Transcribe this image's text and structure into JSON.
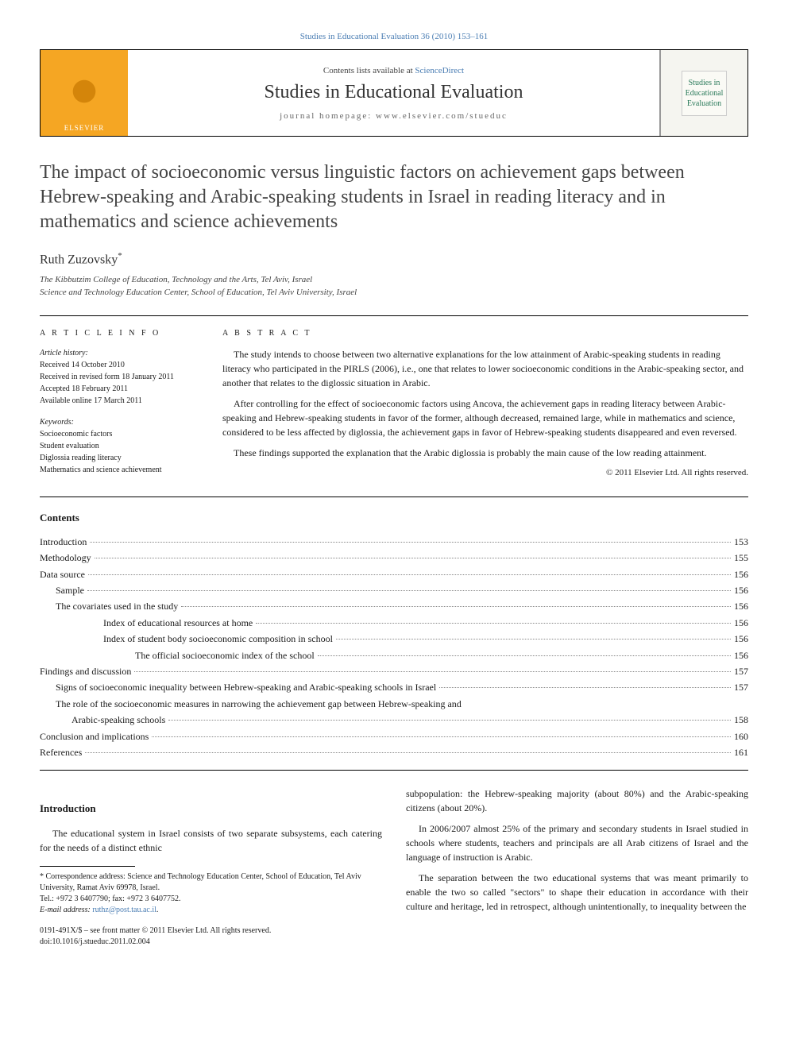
{
  "header_ref": "Studies in Educational Evaluation 36 (2010) 153–161",
  "banner": {
    "contents_prefix": "Contents lists available at ",
    "contents_link": "ScienceDirect",
    "journal_title": "Studies in Educational Evaluation",
    "homepage": "journal homepage: www.elsevier.com/stueduc",
    "publisher": "ELSEVIER",
    "thumb_line1": "Studies in",
    "thumb_line2": "Educational",
    "thumb_line3": "Evaluation"
  },
  "title": "The impact of socioeconomic versus linguistic factors on achievement gaps between Hebrew-speaking and Arabic-speaking students in Israel in reading literacy and in mathematics and science achievements",
  "author": "Ruth Zuzovsky",
  "author_marker": "*",
  "affiliations": [
    "The Kibbutzim College of Education, Technology and the Arts, Tel Aviv, Israel",
    "Science and Technology Education Center, School of Education, Tel Aviv University, Israel"
  ],
  "info_heading": "A R T I C L E   I N F O",
  "abstract_heading": "A B S T R A C T",
  "history": {
    "title": "Article history:",
    "lines": [
      "Received 14 October 2010",
      "Received in revised form 18 January 2011",
      "Accepted 18 February 2011",
      "Available online 17 March 2011"
    ]
  },
  "keywords": {
    "title": "Keywords:",
    "items": [
      "Socioeconomic factors",
      "Student evaluation",
      "Diglossia reading literacy",
      "Mathematics and science achievement"
    ]
  },
  "abstract": {
    "p1": "The study intends to choose between two alternative explanations for the low attainment of Arabic-speaking students in reading literacy who participated in the PIRLS (2006), i.e., one that relates to lower socioeconomic conditions in the Arabic-speaking sector, and another that relates to the diglossic situation in Arabic.",
    "p2": "After controlling for the effect of socioeconomic factors using Ancova, the achievement gaps in reading literacy between Arabic-speaking and Hebrew-speaking students in favor of the former, although decreased, remained large, while in mathematics and science, considered to be less affected by diglossia, the achievement gaps in favor of Hebrew-speaking students disappeared and even reversed.",
    "p3": "These findings supported the explanation that the Arabic diglossia is probably the main cause of the low reading attainment.",
    "copyright": "© 2011 Elsevier Ltd. All rights reserved."
  },
  "contents_heading": "Contents",
  "toc": [
    {
      "label": "Introduction",
      "page": "153",
      "indent": 0
    },
    {
      "label": "Methodology",
      "page": "155",
      "indent": 0
    },
    {
      "label": "Data source",
      "page": "156",
      "indent": 0
    },
    {
      "label": "Sample",
      "page": "156",
      "indent": 1
    },
    {
      "label": "The covariates used in the study",
      "page": "156",
      "indent": 1
    },
    {
      "label": "Index of educational resources at home",
      "page": "156",
      "indent": 3
    },
    {
      "label": "Index of student body socioeconomic composition in school",
      "page": "156",
      "indent": 3
    },
    {
      "label": "The official socioeconomic index of the school",
      "page": "156",
      "indent": 4
    },
    {
      "label": "Findings and discussion",
      "page": "157",
      "indent": 0
    },
    {
      "label": "Signs of socioeconomic inequality between Hebrew-speaking and Arabic-speaking schools in Israel",
      "page": "157",
      "indent": 1
    },
    {
      "label": "The role of the socioeconomic measures in narrowing the achievement gap between Hebrew-speaking and",
      "page": "",
      "indent": 1
    },
    {
      "label": "Arabic-speaking schools",
      "page": "158",
      "indent": 2
    },
    {
      "label": "Conclusion and implications",
      "page": "160",
      "indent": 0
    },
    {
      "label": "References",
      "page": "161",
      "indent": 0
    }
  ],
  "intro_heading": "Introduction",
  "body": {
    "left_p1": "The educational system in Israel consists of two separate subsystems, each catering for the needs of a distinct ethnic",
    "right_p1": "subpopulation: the Hebrew-speaking majority (about 80%) and the Arabic-speaking citizens (about 20%).",
    "right_p2": "In 2006/2007 almost 25% of the primary and secondary students in Israel studied in schools where students, teachers and principals are all Arab citizens of Israel and the language of instruction is Arabic.",
    "right_p3": "The separation between the two educational systems that was meant primarily to enable the two so called \"sectors\" to shape their education in accordance with their culture and heritage, led in retrospect, although unintentionally, to inequality between the"
  },
  "footnote": {
    "corr": "* Correspondence address: Science and Technology Education Center, School of Education, Tel Aviv University, Ramat Aviv 69978, Israel.",
    "tel": "Tel.: +972 3 6407790; fax: +972 3 6407752.",
    "email_label": "E-mail address: ",
    "email": "ruthz@post.tau.ac.il",
    "email_suffix": "."
  },
  "bottom": {
    "line1": "0191-491X/$ – see front matter © 2011 Elsevier Ltd. All rights reserved.",
    "line2": "doi:10.1016/j.stueduc.2011.02.004"
  },
  "colors": {
    "link": "#4a7db3",
    "elsevier_bg": "#f5a623",
    "text": "#1a1a1a"
  }
}
